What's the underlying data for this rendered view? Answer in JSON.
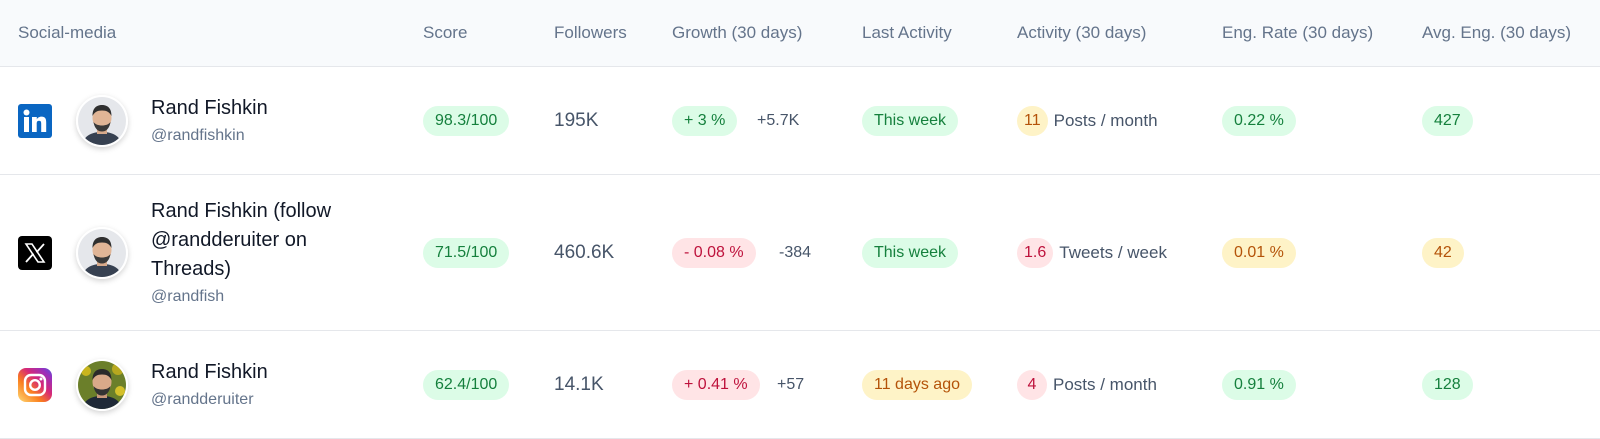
{
  "headers": {
    "social": "Social-media",
    "score": "Score",
    "followers": "Followers",
    "growth": "Growth (30 days)",
    "last_activity": "Last Activity",
    "activity": "Activity (30 days)",
    "eng_rate": "Eng. Rate (30 days)",
    "avg_eng": "Avg. Eng. (30 days)"
  },
  "rows": [
    {
      "network": "linkedin-icon",
      "name": "Rand Fishkin",
      "handle": "@randfishkin",
      "score": "98.3/100",
      "followers": "195K",
      "growth_pct": "+ 3 %",
      "growth_abs": "+5.7K",
      "last_activity": "This week",
      "activity_count": "11",
      "activity_label": "Posts / month",
      "eng_rate": "0.22 %",
      "avg_eng": "427"
    },
    {
      "network": "x-icon",
      "name": "Rand Fishkin (follow @randderuiter on Threads)",
      "handle": "@randfish",
      "score": "71.5/100",
      "followers": "460.6K",
      "growth_pct": "- 0.08 %",
      "growth_abs": "-384",
      "last_activity": "This week",
      "activity_count": "1.6",
      "activity_label": "Tweets / week",
      "eng_rate": "0.01 %",
      "avg_eng": "42"
    },
    {
      "network": "instagram-icon",
      "name": "Rand Fishkin",
      "handle": "@randderuiter",
      "score": "62.4/100",
      "followers": "14.1K",
      "growth_pct": "+ 0.41 %",
      "growth_abs": "+57",
      "last_activity": "11 days ago",
      "activity_count": "4",
      "activity_label": "Posts / month",
      "eng_rate": "0.91 %",
      "avg_eng": "128"
    }
  ],
  "colors": {
    "green_bg": "#dcfce7",
    "green_text": "#15803d",
    "red_bg": "#ffe4e6",
    "red_text": "#be123c",
    "yellow_bg": "#fef3c7",
    "yellow_text": "#b45309",
    "linkedin": "#0a66c2"
  }
}
